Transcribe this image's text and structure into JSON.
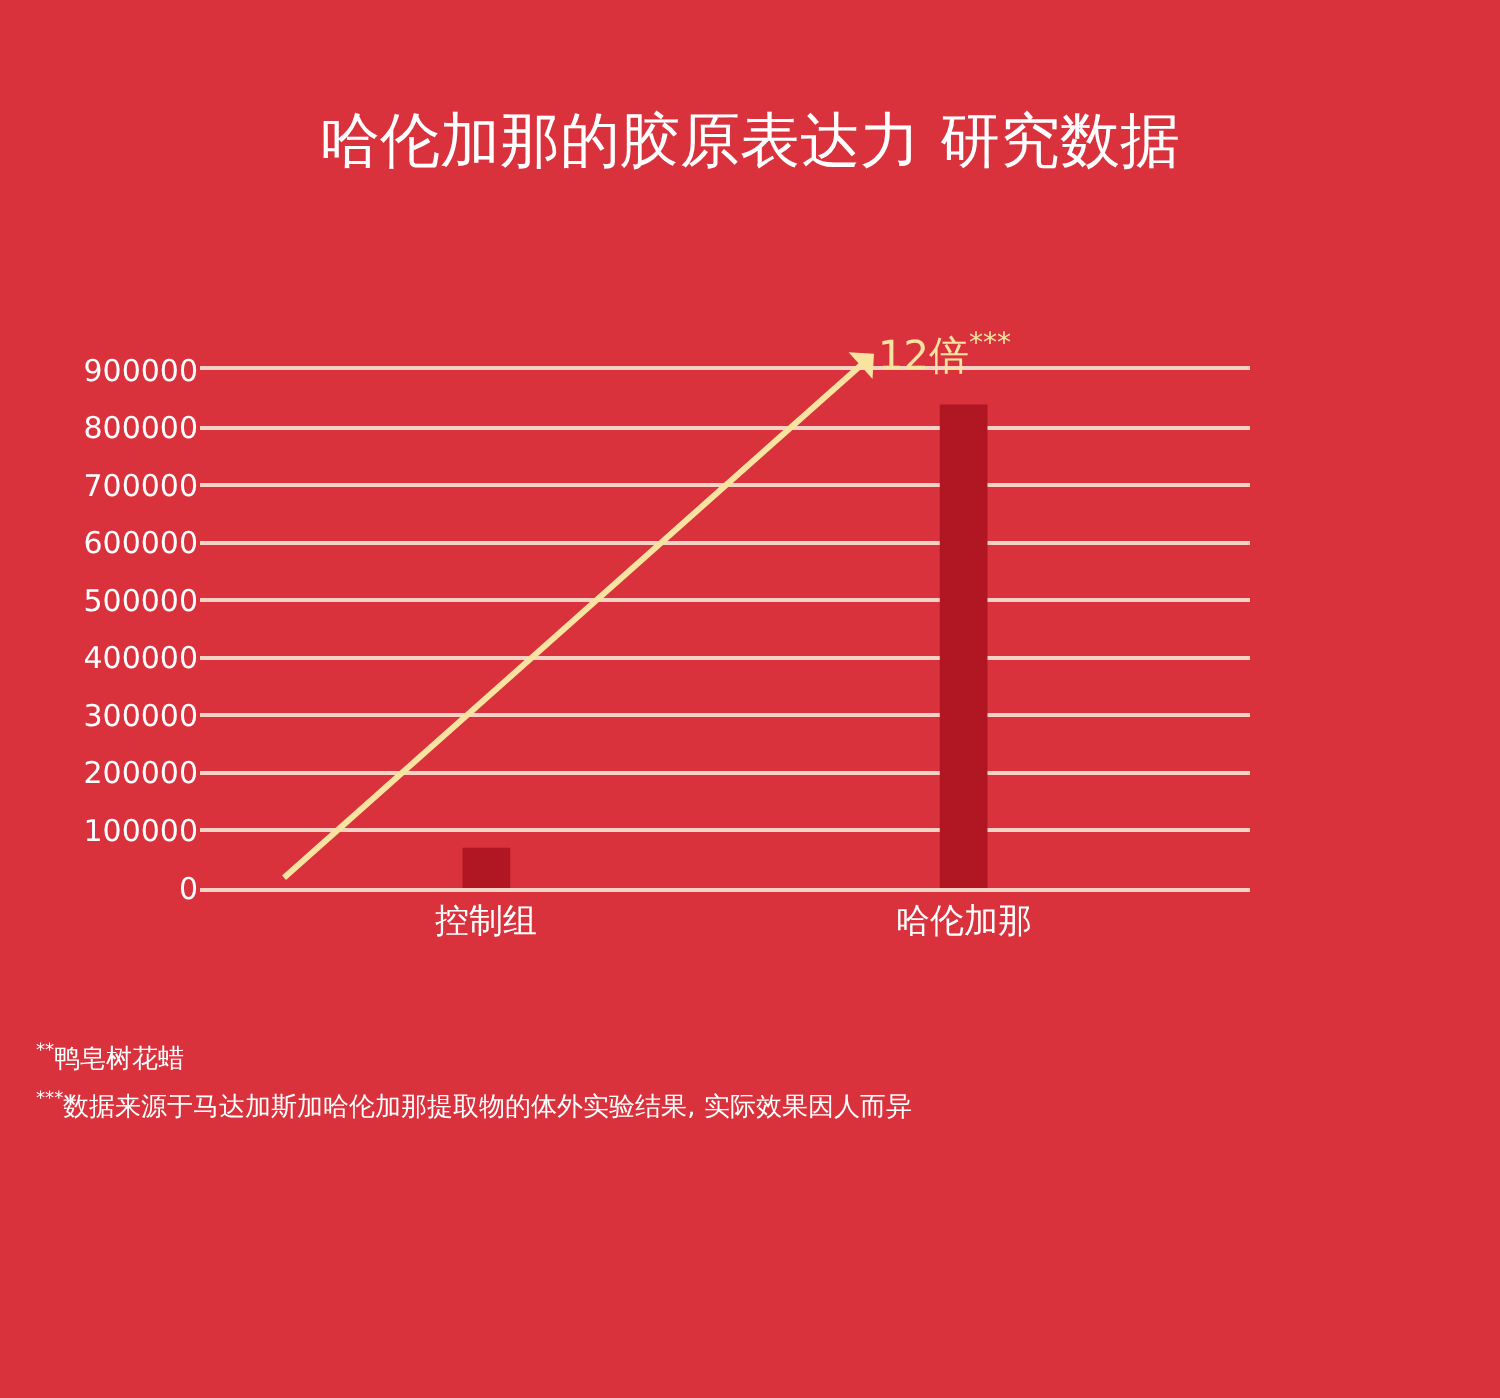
{
  "chart_data": {
    "type": "bar",
    "title": "哈伦加那的胶原表达力 研究数据",
    "categories": [
      "控制组",
      "哈伦加那"
    ],
    "values": [
      70000,
      840000
    ],
    "color": "#b01722",
    "ylim": [
      0,
      900000
    ],
    "yticks": [
      0,
      100000,
      200000,
      300000,
      400000,
      500000,
      600000,
      700000,
      800000,
      900000
    ],
    "grid": "y",
    "annotations": [
      "12倍$^{***}$",
      "$^{**}$鸭皂树花蜡",
      "$^{***}$数据来源于马达加斯加哈伦加那提取物的体外实验结果, 实际效果因人而异"
    ]
  }
}
